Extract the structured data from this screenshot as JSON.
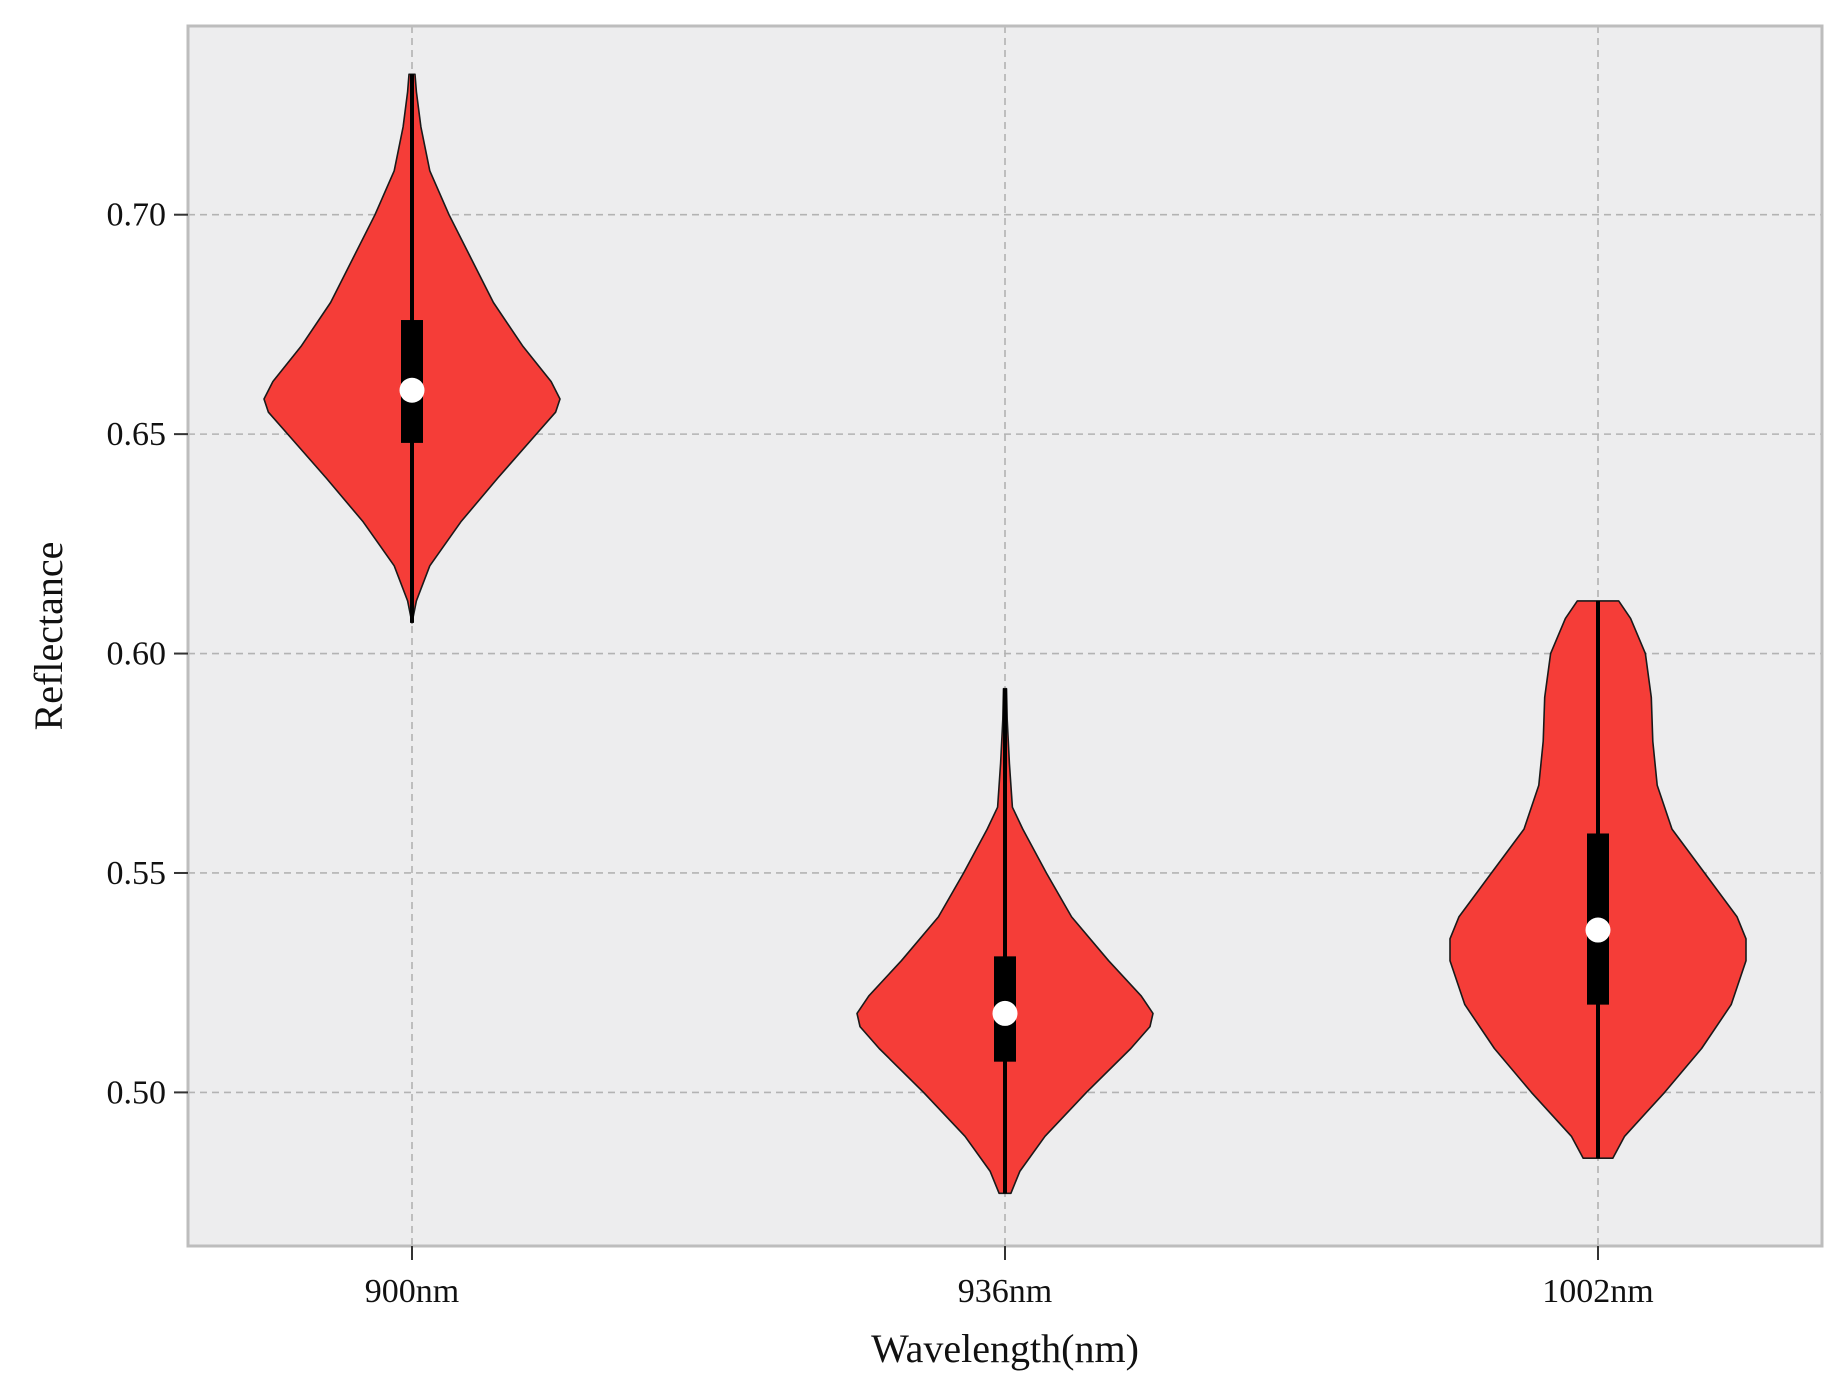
{
  "chart_data": {
    "type": "violin",
    "title": "",
    "xlabel": "Wavelength(nm)",
    "ylabel": "Reflectance",
    "categories": [
      "900nm",
      "936nm",
      "1002nm"
    ],
    "yticks": [
      "0.50",
      "0.55",
      "0.60",
      "0.65",
      "0.70"
    ],
    "ylim": [
      0.465,
      0.743
    ],
    "grid": true,
    "colors": {
      "violin_fill": "#f53d38",
      "violin_edge": "#1a1a1a",
      "plot_background": "#ededee",
      "grid": "#b3b3b3",
      "frame": "#bdbdbd",
      "median_marker": "#ffffff",
      "box": "#000000"
    },
    "violins": [
      {
        "category": "900nm",
        "min": 0.607,
        "q1": 0.648,
        "median": 0.66,
        "q3": 0.676,
        "max": 0.732,
        "density": [
          [
            0.607,
            0.0
          ],
          [
            0.612,
            0.03
          ],
          [
            0.62,
            0.12
          ],
          [
            0.63,
            0.33
          ],
          [
            0.64,
            0.58
          ],
          [
            0.65,
            0.84
          ],
          [
            0.655,
            0.97
          ],
          [
            0.658,
            1.0
          ],
          [
            0.662,
            0.94
          ],
          [
            0.67,
            0.75
          ],
          [
            0.68,
            0.55
          ],
          [
            0.69,
            0.4
          ],
          [
            0.7,
            0.25
          ],
          [
            0.71,
            0.12
          ],
          [
            0.72,
            0.06
          ],
          [
            0.728,
            0.03
          ],
          [
            0.732,
            0.02
          ]
        ]
      },
      {
        "category": "936nm",
        "min": 0.477,
        "q1": 0.507,
        "median": 0.518,
        "q3": 0.531,
        "max": 0.592,
        "density": [
          [
            0.477,
            0.04
          ],
          [
            0.482,
            0.1
          ],
          [
            0.49,
            0.27
          ],
          [
            0.5,
            0.55
          ],
          [
            0.51,
            0.85
          ],
          [
            0.515,
            0.98
          ],
          [
            0.518,
            1.0
          ],
          [
            0.522,
            0.92
          ],
          [
            0.53,
            0.7
          ],
          [
            0.54,
            0.45
          ],
          [
            0.55,
            0.28
          ],
          [
            0.56,
            0.12
          ],
          [
            0.565,
            0.05
          ],
          [
            0.575,
            0.03
          ],
          [
            0.585,
            0.015
          ],
          [
            0.592,
            0.01
          ]
        ]
      },
      {
        "category": "1002nm",
        "min": 0.485,
        "q1": 0.52,
        "median": 0.537,
        "q3": 0.559,
        "max": 0.612,
        "density": [
          [
            0.485,
            0.1
          ],
          [
            0.49,
            0.18
          ],
          [
            0.5,
            0.45
          ],
          [
            0.51,
            0.7
          ],
          [
            0.52,
            0.9
          ],
          [
            0.53,
            1.0
          ],
          [
            0.535,
            1.0
          ],
          [
            0.54,
            0.94
          ],
          [
            0.55,
            0.72
          ],
          [
            0.56,
            0.5
          ],
          [
            0.57,
            0.4
          ],
          [
            0.58,
            0.37
          ],
          [
            0.59,
            0.36
          ],
          [
            0.6,
            0.32
          ],
          [
            0.608,
            0.22
          ],
          [
            0.612,
            0.14
          ]
        ]
      }
    ]
  }
}
